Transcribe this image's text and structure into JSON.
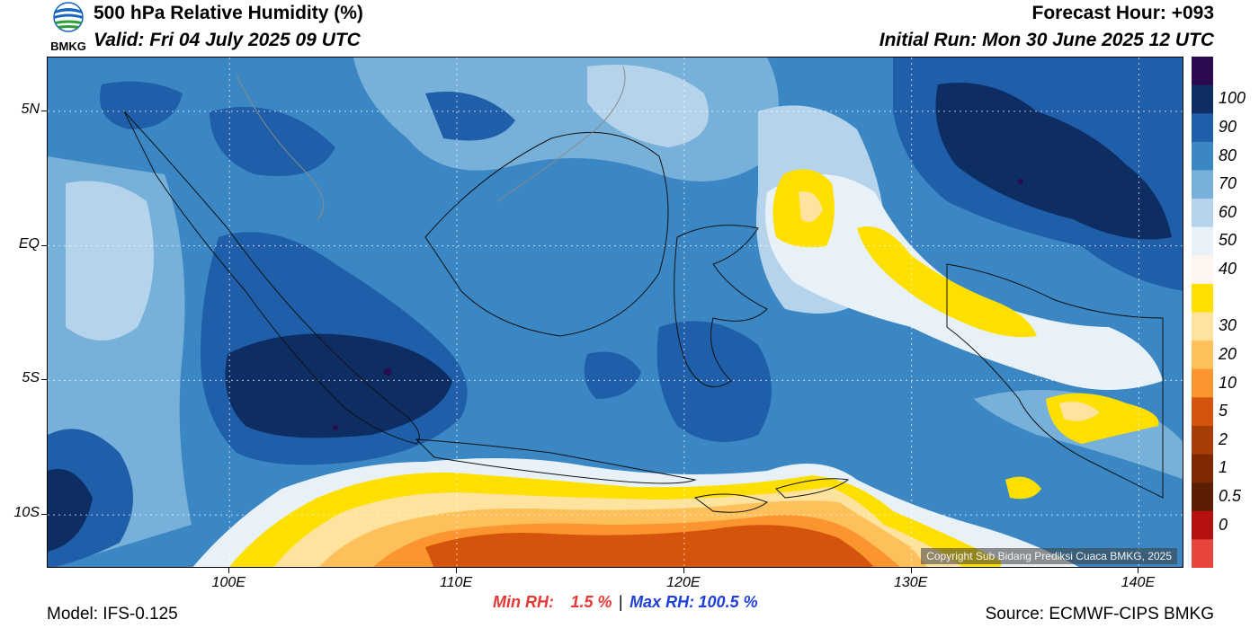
{
  "header": {
    "title": "500 hPa Relative Humidity (%)",
    "valid": "Valid: Fri 04 July 2025 09 UTC",
    "forecast_hour": "Forecast Hour: +093",
    "initial_run": "Initial Run: Mon 30 June 2025 12 UTC",
    "logo_text": "BMKG"
  },
  "map": {
    "x_ticks": [
      "100E",
      "110E",
      "120E",
      "130E",
      "140E"
    ],
    "x_tick_lons": [
      100,
      110,
      120,
      130,
      140
    ],
    "y_ticks": [
      "5N",
      "EQ",
      "5S",
      "10S"
    ],
    "y_tick_lats": [
      5,
      0,
      -5,
      -10
    ],
    "lon_range": [
      92,
      142
    ],
    "lat_range": [
      -12,
      7
    ],
    "copyright": "Copyright Sub Bidang Prediksi Cuaca BMKG, 2025"
  },
  "colorbar": {
    "labels": [
      "100",
      "90",
      "80",
      "70",
      "60",
      "50",
      "40",
      "30",
      "20",
      "10",
      "5",
      "2",
      "1",
      "0.5",
      "0"
    ],
    "colors": [
      "#2b0a4f",
      "#0d2d63",
      "#1f5ea8",
      "#3a87c4",
      "#77b0d9",
      "#b5d4ec",
      "#e9f1f8",
      "#fff5f0",
      "#fddf00",
      "#fde39d",
      "#fdc05a",
      "#fb9530",
      "#d4540b",
      "#a63d07",
      "#7e2904",
      "#5b1e05",
      "#b71010",
      "#e8453c"
    ]
  },
  "footer": {
    "model": "Model: IFS-0.125",
    "min_label": "Min RH:",
    "min_value": "1.5 %",
    "separator": "|",
    "max_label": "Max RH:",
    "max_value": "100.5 %",
    "source": "Source: ECMWF-CIPS BMKG"
  }
}
